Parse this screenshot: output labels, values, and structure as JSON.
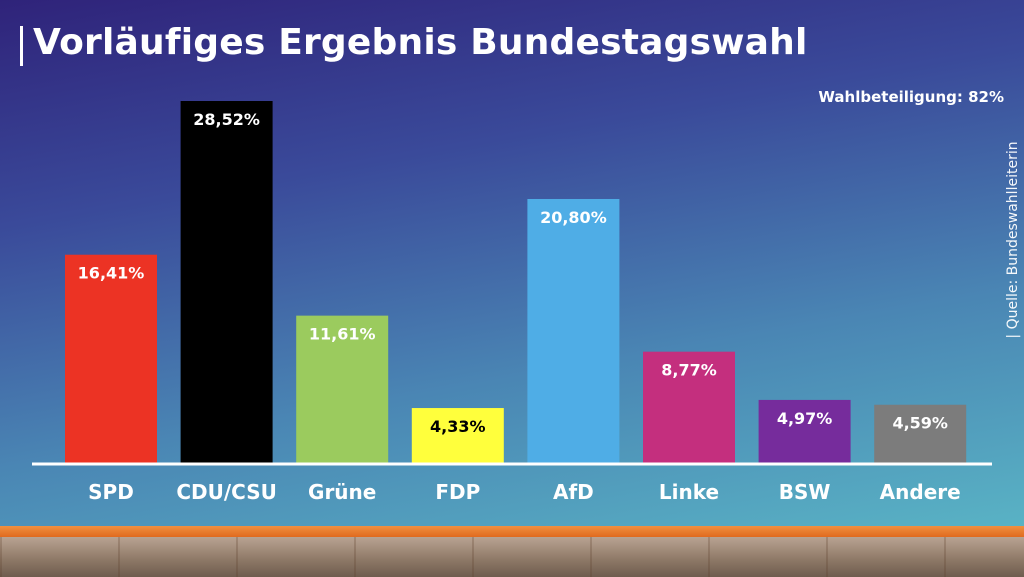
{
  "title": "Vorläufiges Ergebnis Bundestagswahl",
  "turnout": "Wahlbeteiligung: 82%",
  "source": "| Quelle: Bundeswahlleiterin",
  "chart_data": {
    "type": "bar",
    "categories": [
      "SPD",
      "CDU/CSU",
      "Grüne",
      "FDP",
      "AfD",
      "Linke",
      "BSW",
      "Andere"
    ],
    "values": [
      16.41,
      28.52,
      11.61,
      4.33,
      20.8,
      8.77,
      4.97,
      4.59
    ],
    "value_labels": [
      "16,41%",
      "28,52%",
      "11,61%",
      "4,33%",
      "20,80%",
      "8,77%",
      "4,97%",
      "4,59%"
    ],
    "colors": [
      "#ec3324",
      "#000000",
      "#9bcb5e",
      "#ffff3c",
      "#4fade6",
      "#c42f7e",
      "#762c9c",
      "#7c7c7c"
    ],
    "label_colors": [
      "#ffffff",
      "#ffffff",
      "#ffffff",
      "#000000",
      "#ffffff",
      "#ffffff",
      "#ffffff",
      "#ffffff"
    ],
    "title": "Vorläufiges Ergebnis Bundestagswahl",
    "xlabel": "",
    "ylabel": "",
    "grid": false,
    "legend": false
  }
}
